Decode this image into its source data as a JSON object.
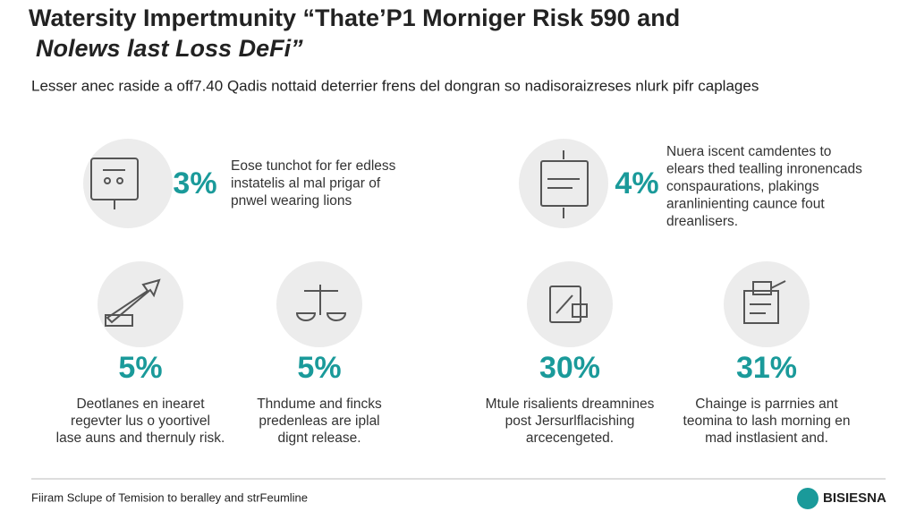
{
  "header": {
    "title_lines": [
      "Watersity Impertmunity “Thate’P1 Morniger Risk 590 and",
      "Nolews last Loss DeFi”"
    ],
    "subtitle": "Lesser anec raside a off7.40 Qadis nottaid deterrier frens del dongran so nadisoraizreses nlurk pifr caplages"
  },
  "top_items": [
    {
      "percent": "3%",
      "lines": [
        "Eose tunchot for fer edless",
        "instatelis al mal prigar of",
        "pnwel wearing lions"
      ]
    },
    {
      "percent": "4%",
      "lines": [
        "Nuera iscent camdentes to",
        "elears thed tealling inronencads",
        "conspaurations, plakings",
        "aranlinienting caunce fout",
        "dreanlisers."
      ]
    }
  ],
  "bottom_items": [
    {
      "percent": "5%",
      "lines": [
        "Deotlanes en inearet",
        "regevter lus o yoortivel",
        "lase auns and thernuly risk."
      ]
    },
    {
      "percent": "5%",
      "lines": [
        "Thndume and fincks",
        "predenleas are iplal",
        "dignt release."
      ]
    },
    {
      "percent": "30%",
      "lines": [
        "Mtule risalients dreamnines",
        "post Jersurlflacishing",
        "arcecengeted."
      ]
    },
    {
      "percent": "31%",
      "lines": [
        "Chainge is parrnies ant",
        "teomina to lash morning en",
        "mad instlasient and."
      ]
    }
  ],
  "footer": {
    "source": "Fiiram Sclupe of Temision to beralley and strFeumline",
    "logo": "BISIESNA"
  }
}
